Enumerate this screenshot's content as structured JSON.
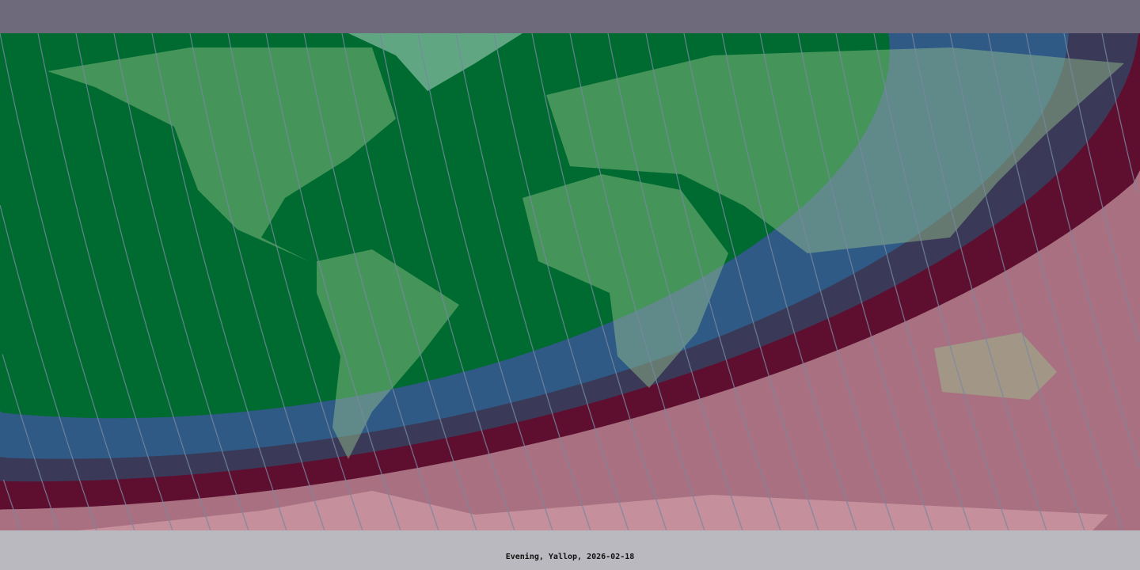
{
  "map": {
    "caption": "Evening, Yallop, 2026-02-18",
    "zone_colors": {
      "easily_visible": "#006b30",
      "visible_perfect_conditions": "#2f5a85",
      "optical_aid_may_be_needed": "#3a3a58",
      "optical_aid_needed": "#5e0f30",
      "not_visible": "#a87080"
    },
    "polar_band_color": "#6e6a7c",
    "antarctic_band_color": "#b8b8be"
  }
}
